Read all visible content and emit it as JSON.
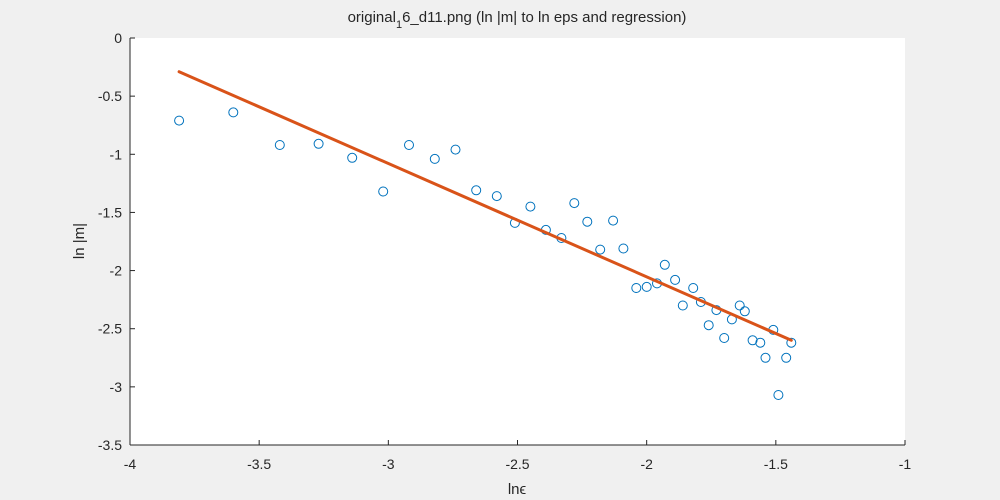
{
  "chart_data": {
    "type": "scatter",
    "title_main": "original",
    "title_sub": "1",
    "title_rest": "6_d11.png (ln |m| to ln eps and regression)",
    "xlabel": "lnϵ",
    "ylabel": "ln |m|",
    "xlim": [
      -4,
      -1
    ],
    "ylim": [
      -3.5,
      0
    ],
    "xticks": [
      -4,
      -3.5,
      -3,
      -2.5,
      -2,
      -1.5,
      -1
    ],
    "yticks": [
      0,
      -0.5,
      -1,
      -1.5,
      -2,
      -2.5,
      -3,
      -3.5
    ],
    "grid": false,
    "colors": {
      "points": "#0072bd",
      "fit": "#d95319",
      "axes_bg": "#ffffff",
      "figure_bg": "#f0f0f0"
    },
    "points": [
      [
        -3.81,
        -0.71
      ],
      [
        -3.6,
        -0.64
      ],
      [
        -3.42,
        -0.92
      ],
      [
        -3.27,
        -0.91
      ],
      [
        -3.14,
        -1.03
      ],
      [
        -3.02,
        -1.32
      ],
      [
        -2.92,
        -0.92
      ],
      [
        -2.82,
        -1.04
      ],
      [
        -2.74,
        -0.96
      ],
      [
        -2.66,
        -1.31
      ],
      [
        -2.58,
        -1.36
      ],
      [
        -2.51,
        -1.59
      ],
      [
        -2.45,
        -1.45
      ],
      [
        -2.39,
        -1.65
      ],
      [
        -2.33,
        -1.72
      ],
      [
        -2.28,
        -1.42
      ],
      [
        -2.23,
        -1.58
      ],
      [
        -2.18,
        -1.82
      ],
      [
        -2.13,
        -1.57
      ],
      [
        -2.09,
        -1.81
      ],
      [
        -2.04,
        -2.15
      ],
      [
        -2.0,
        -2.14
      ],
      [
        -1.96,
        -2.11
      ],
      [
        -1.93,
        -1.95
      ],
      [
        -1.89,
        -2.08
      ],
      [
        -1.86,
        -2.3
      ],
      [
        -1.82,
        -2.15
      ],
      [
        -1.79,
        -2.27
      ],
      [
        -1.76,
        -2.47
      ],
      [
        -1.73,
        -2.34
      ],
      [
        -1.7,
        -2.58
      ],
      [
        -1.67,
        -2.42
      ],
      [
        -1.64,
        -2.3
      ],
      [
        -1.62,
        -2.35
      ],
      [
        -1.59,
        -2.6
      ],
      [
        -1.56,
        -2.62
      ],
      [
        -1.54,
        -2.75
      ],
      [
        -1.51,
        -2.51
      ],
      [
        -1.49,
        -3.07
      ],
      [
        -1.46,
        -2.75
      ],
      [
        -1.44,
        -2.62
      ]
    ],
    "regression": {
      "x": [
        -3.81,
        -1.44
      ],
      "y": [
        -0.29,
        -2.6
      ]
    }
  }
}
